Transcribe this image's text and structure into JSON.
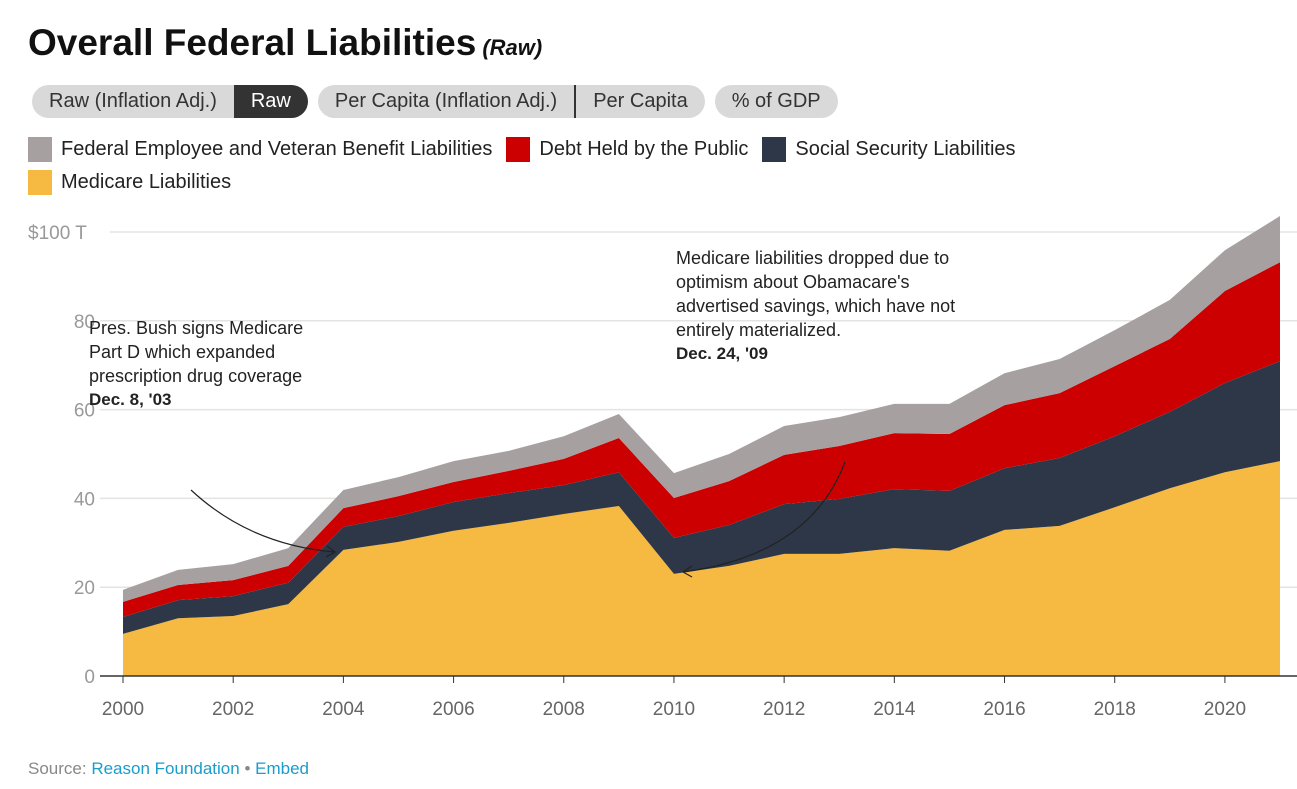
{
  "title": "Overall Federal Liabilities",
  "title_mode": "(Raw)",
  "toggles": [
    {
      "buttons": [
        {
          "label": "Raw (Inflation Adj.)",
          "active": false
        },
        {
          "label": "Raw",
          "active": true
        }
      ]
    },
    {
      "buttons": [
        {
          "label": "Per Capita (Inflation Adj.)",
          "active": false
        },
        {
          "label": "Per Capita",
          "active": false
        }
      ]
    },
    {
      "buttons": [
        {
          "label": "% of GDP",
          "active": false
        }
      ]
    }
  ],
  "source": {
    "label": "Source:",
    "link": "Reason Foundation",
    "separator": "•",
    "embed": "Embed"
  },
  "annotations": [
    {
      "text": "Pres. Bush signs Medicare Part D which expanded prescription drug coverage",
      "date": "Dec. 8, '03"
    },
    {
      "text": "Medicare liabilities dropped due to optimism about Obamacare's advertised savings, which have not entirely materialized.",
      "date": "Dec. 24, '09"
    }
  ],
  "chart_data": {
    "type": "area",
    "stacked": true,
    "title": "Overall Federal Liabilities",
    "x": [
      2000,
      2001,
      2002,
      2003,
      2004,
      2005,
      2006,
      2007,
      2008,
      2009,
      2010,
      2011,
      2012,
      2013,
      2014,
      2015,
      2016,
      2017,
      2018,
      2019,
      2020,
      2021
    ],
    "xticks": [
      "2000",
      "2002",
      "2004",
      "2006",
      "2008",
      "2010",
      "2012",
      "2014",
      "2016",
      "2018",
      "2020"
    ],
    "yticks": [
      "0",
      "20",
      "40",
      "60",
      "80",
      "$100 T"
    ],
    "ylim": [
      0,
      100
    ],
    "grid": true,
    "legend_position": "top-left",
    "series": [
      {
        "name": "Medicare Liabilities",
        "color": "#f6b942",
        "values": [
          9.5,
          13,
          13.5,
          16.2,
          28.4,
          30.2,
          32.7,
          34.5,
          36.5,
          38.3,
          23,
          24.8,
          27.5,
          27.5,
          28.8,
          28.2,
          32.9,
          33.8,
          38,
          42.3,
          45.9,
          48.4
        ]
      },
      {
        "name": "Social Security Liabilities",
        "color": "#2d3747",
        "values": [
          3.8,
          4.1,
          4.5,
          4.8,
          5.2,
          5.8,
          6.5,
          6.7,
          6.5,
          7.6,
          8.1,
          9.2,
          11.2,
          12.4,
          13.3,
          13.5,
          13.9,
          15.3,
          16,
          17.2,
          20.1,
          22.5
        ]
      },
      {
        "name": "Debt Held by the Public",
        "color": "#cc0000",
        "values": [
          3.4,
          3.4,
          3.6,
          3.8,
          4.2,
          4.5,
          4.5,
          5,
          5.9,
          7.7,
          9,
          9.9,
          11.1,
          11.9,
          12.6,
          12.8,
          14.2,
          14.6,
          15.8,
          16.4,
          20.7,
          22.3
        ]
      },
      {
        "name": "Federal Employee and Veteran Benefit Liabilities",
        "color": "#a6a0a1",
        "values": [
          2.7,
          3.4,
          3.6,
          4,
          4.1,
          4.3,
          4.7,
          4.5,
          5.1,
          5.4,
          5.6,
          6.1,
          6.5,
          6.5,
          6.6,
          6.8,
          7.2,
          7.7,
          8.1,
          8.8,
          9.2,
          10.4
        ]
      }
    ],
    "legend_order": [
      "Federal Employee and Veteran Benefit Liabilities",
      "Debt Held by the Public",
      "Social Security Liabilities",
      "Medicare Liabilities"
    ]
  }
}
